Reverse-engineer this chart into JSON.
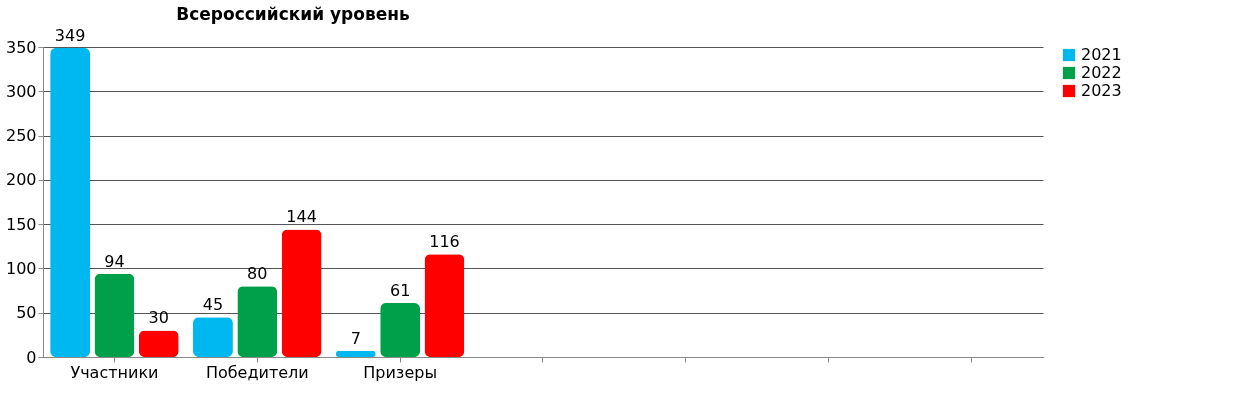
{
  "chart_data": {
    "type": "bar",
    "title": "Всероссийский уровень",
    "categories": [
      "Участники",
      "Победители",
      "Призеры",
      null,
      null,
      null,
      null
    ],
    "series": [
      {
        "name": "2021",
        "color": "#00b8f0",
        "values": [
          349,
          45,
          7,
          null,
          null,
          null,
          null
        ]
      },
      {
        "name": "2022",
        "color": "#00a04a",
        "values": [
          94,
          80,
          61,
          null,
          null,
          null,
          null
        ]
      },
      {
        "name": "2023",
        "color": "#ff0000",
        "values": [
          30,
          144,
          116,
          null,
          null,
          null,
          null
        ]
      }
    ],
    "ylim": [
      0,
      350
    ],
    "yticks": [
      0,
      50,
      100,
      150,
      200,
      250,
      300,
      350
    ],
    "grid": "y",
    "legend": "right",
    "data_labels": true
  }
}
